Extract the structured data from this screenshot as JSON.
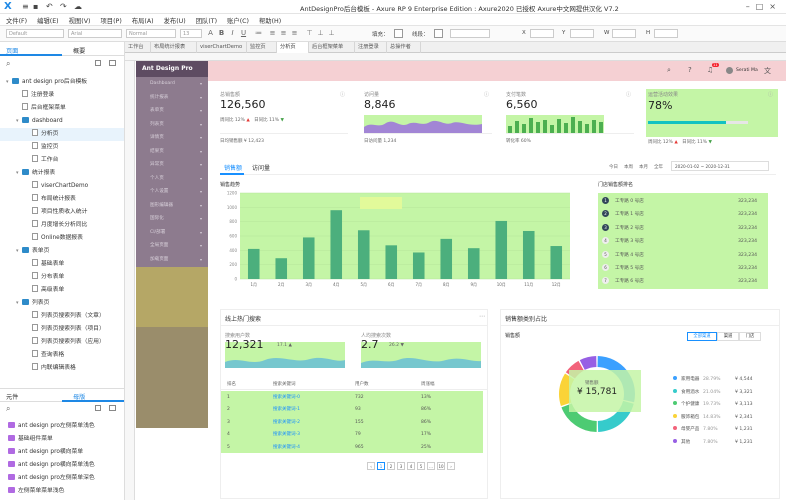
{
  "window": {
    "title": "AntDesignPro后台模板 - Axure RP 9 Enterprise Edition : Axure2020 已授权   Axure中文网提供汉化 V7.2"
  },
  "menu": [
    "文件(F)",
    "编辑(E)",
    "视图(V)",
    "项目(P)",
    "布局(A)",
    "发布(U)",
    "团队(T)",
    "账户(C)",
    "帮助(H)"
  ],
  "toolbar": {
    "style_select": "Default",
    "font_select": "Arial",
    "weight_select": "Normal",
    "size_select": "13",
    "fill_label": "填充：",
    "border_label": "线段：",
    "x_label": "X",
    "y_label": "Y",
    "w_label": "W",
    "h_label": "H"
  },
  "left_panel": {
    "tabs": [
      "页面",
      "概要"
    ],
    "tree": [
      {
        "label": "ant design pro后台模板",
        "level": 0,
        "kind": "folder",
        "open": true
      },
      {
        "label": "注册登录",
        "level": 1,
        "kind": "page"
      },
      {
        "label": "后台框架菜单",
        "level": 1,
        "kind": "page"
      },
      {
        "label": "dashboard",
        "level": 1,
        "kind": "folder",
        "open": true
      },
      {
        "label": "分析页",
        "level": 2,
        "kind": "page",
        "selected": true
      },
      {
        "label": "监控页",
        "level": 2,
        "kind": "page"
      },
      {
        "label": "工作台",
        "level": 2,
        "kind": "page"
      },
      {
        "label": "统计报表",
        "level": 1,
        "kind": "folder",
        "open": true
      },
      {
        "label": "viserChartDemo",
        "level": 2,
        "kind": "page"
      },
      {
        "label": "布局统计报表",
        "level": 2,
        "kind": "page"
      },
      {
        "label": "项目性质收入统计",
        "level": 2,
        "kind": "page"
      },
      {
        "label": "月度增长分析同比",
        "level": 2,
        "kind": "page"
      },
      {
        "label": "Online数据报表",
        "level": 2,
        "kind": "page"
      },
      {
        "label": "表单页",
        "level": 1,
        "kind": "folder",
        "open": true
      },
      {
        "label": "基础表单",
        "level": 2,
        "kind": "page"
      },
      {
        "label": "分布表单",
        "level": 2,
        "kind": "page"
      },
      {
        "label": "高级表单",
        "level": 2,
        "kind": "page"
      },
      {
        "label": "列表页",
        "level": 1,
        "kind": "folder",
        "open": true
      },
      {
        "label": "列表页搜索列表（文章）",
        "level": 2,
        "kind": "page"
      },
      {
        "label": "列表页搜索列表（项目）",
        "level": 2,
        "kind": "page"
      },
      {
        "label": "列表页搜索列表（应用）",
        "level": 2,
        "kind": "page"
      },
      {
        "label": "查询表格",
        "level": 2,
        "kind": "page"
      },
      {
        "label": "内联编辑表格",
        "level": 2,
        "kind": "page"
      }
    ],
    "bottom_tabs": [
      "元件",
      "母版"
    ],
    "masters": [
      "ant design pro左侧菜单浅色",
      "基础组件菜单",
      "ant design pro横向菜单",
      "ant design pro横向菜单浅色",
      "ant design pro左侧菜单深色",
      "左侧菜单菜单浅色"
    ]
  },
  "doc_tabs": [
    "工作台",
    "布局统计报表",
    "viserChartDemo",
    "监控页",
    "分析页",
    "后台框架菜单",
    "注册登录",
    "总操作者"
  ],
  "active_doc_tab": 4,
  "prototype": {
    "brand": "Ant Design Pro",
    "nav_items": [
      "Dashboard",
      "统计报表",
      "表单页",
      "列表页",
      "详情页",
      "结果页",
      "异常页",
      "个人页",
      "个人设置",
      "图形编辑器",
      "国际化",
      "CI/部署",
      "全局页面",
      "加载页面",
      "预警中心"
    ],
    "header": {
      "user": "Serati Ma",
      "badge": "11"
    },
    "kpis": [
      {
        "label": "总销售额",
        "value": "126,560",
        "sub1": "周同比 12% ▲",
        "sub2": "日同比 11% ▼",
        "foot": "日均销售额 ¥ 12,423"
      },
      {
        "label": "访问量",
        "value": "8,846",
        "foot": "日访问量 1,234"
      },
      {
        "label": "支付笔数",
        "value": "6,560",
        "foot": "转化率 60%"
      },
      {
        "label": "运营活动效果",
        "value": "78%",
        "sub1": "周同比 12% ▲",
        "sub2": "日同比 11% ▼",
        "progress": 0.78
      }
    ],
    "sales_tabs": [
      "销售额",
      "访问量"
    ],
    "sales_range": {
      "today": "今日",
      "week": "本周",
      "month": "本月",
      "year": "全年",
      "start": "2020-01-02",
      "end": "2020-12-31"
    },
    "rank_title": "门店销售额排名",
    "rank": [
      {
        "num": "1",
        "name": "工专路 0 号店",
        "value": "323,234"
      },
      {
        "num": "2",
        "name": "工专路 1 号店",
        "value": "323,234"
      },
      {
        "num": "3",
        "name": "工专路 2 号店",
        "value": "323,234"
      },
      {
        "num": "4",
        "name": "工专路 3 号店",
        "value": "323,234"
      },
      {
        "num": "5",
        "name": "工专路 4 号店",
        "value": "323,234"
      },
      {
        "num": "6",
        "name": "工专路 5 号店",
        "value": "323,234"
      },
      {
        "num": "7",
        "name": "工专路 6 号店",
        "value": "323,234"
      }
    ],
    "search_title": "线上热门搜索",
    "search_kpis": [
      {
        "label": "搜索用户数",
        "value": "12,321",
        "change": "17.1 ▲"
      },
      {
        "label": "人均搜索次数",
        "value": "2.7",
        "change": "26.2 ▼"
      }
    ],
    "search_table": {
      "headers": [
        "排名",
        "搜索关键词",
        "用户数",
        "周涨幅"
      ],
      "rows": [
        [
          "1",
          "搜索关键词-0",
          "732",
          "13%"
        ],
        [
          "2",
          "搜索关键词-1",
          "93",
          "86%"
        ],
        [
          "3",
          "搜索关键词-2",
          "155",
          "86%"
        ],
        [
          "4",
          "搜索关键词-3",
          "79",
          "17%"
        ],
        [
          "5",
          "搜索关键词-4",
          "965",
          "25%"
        ]
      ]
    },
    "pagination": [
      "1",
      "2",
      "3",
      "4",
      "5",
      "...",
      "10"
    ],
    "category_title": "销售额类别占比",
    "category_sub": "销售额",
    "category_tabs": [
      "全部渠道",
      "渠道",
      "门店"
    ],
    "pie_center_label": "销售额",
    "pie_center_value": "¥ 15,781",
    "legend": [
      {
        "name": "家用电器",
        "pct": "28.79%",
        "value": "¥ 4,544",
        "color": "#3ba0ff"
      },
      {
        "name": "食用酒水",
        "pct": "21.04%",
        "value": "¥ 3,321",
        "color": "#36cbcb"
      },
      {
        "name": "个护健康",
        "pct": "19.73%",
        "value": "¥ 3,113",
        "color": "#4dcb73"
      },
      {
        "name": "服饰箱包",
        "pct": "14.83%",
        "value": "¥ 2,341",
        "color": "#fad337"
      },
      {
        "name": "母婴产品",
        "pct": "7.80%",
        "value": "¥ 1,231",
        "color": "#f2637b"
      },
      {
        "name": "其他",
        "pct": "7.80%",
        "value": "¥ 1,231",
        "color": "#975fe4"
      }
    ]
  },
  "chart_data": {
    "type": "bar",
    "title": "销售趋势",
    "categories": [
      "1月",
      "2月",
      "3月",
      "4月",
      "5月",
      "6月",
      "7月",
      "8月",
      "9月",
      "10月",
      "11月",
      "12月"
    ],
    "values": [
      420,
      290,
      580,
      960,
      680,
      470,
      370,
      560,
      430,
      810,
      670,
      460
    ],
    "ylim": [
      0,
      1200
    ],
    "yticks": [
      0,
      200,
      400,
      600,
      800,
      1000,
      1200
    ]
  },
  "pie_data": {
    "type": "pie",
    "values": [
      28.79,
      21.04,
      19.73,
      14.83,
      7.8,
      7.8
    ],
    "colors": [
      "#3ba0ff",
      "#36cbcb",
      "#4dcb73",
      "#fad337",
      "#f2637b",
      "#975fe4"
    ]
  }
}
